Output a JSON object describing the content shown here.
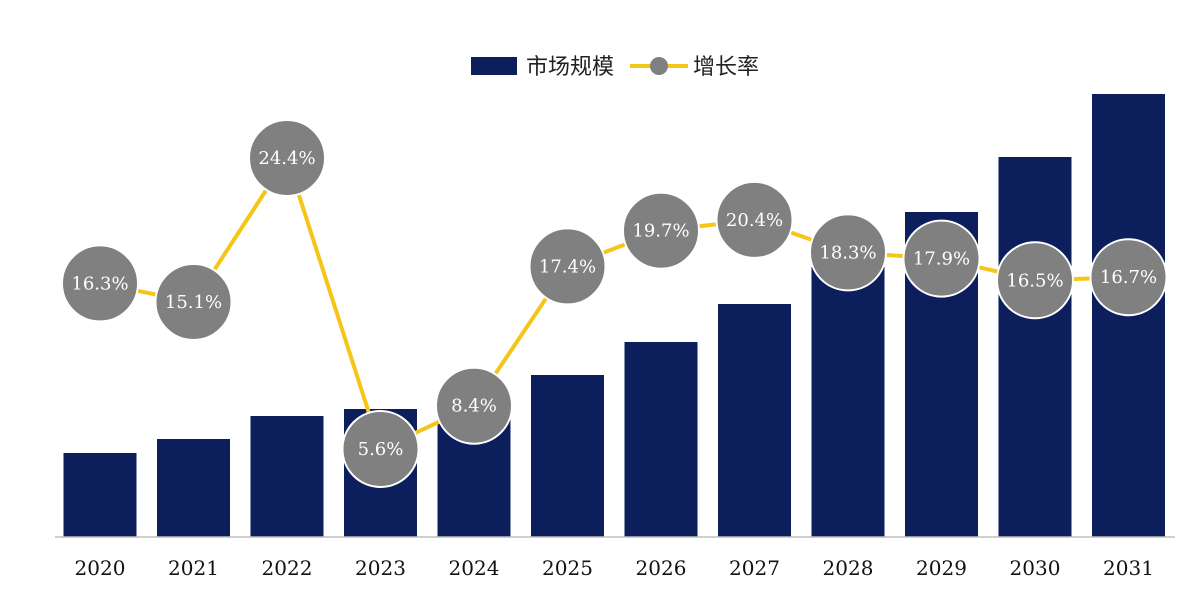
{
  "chart_data": {
    "type": "bar+line",
    "categories": [
      "2020",
      "2021",
      "2022",
      "2023",
      "2024",
      "2025",
      "2026",
      "2027",
      "2028",
      "2029",
      "2030",
      "2031"
    ],
    "series": [
      {
        "name": "市场规模",
        "type": "bar",
        "color": "#0c1f5c",
        "values": [
          84,
          98,
          121,
          128,
          136,
          162,
          195,
          233,
          270,
          325,
          380,
          443
        ]
      },
      {
        "name": "增长率",
        "type": "line",
        "line_color": "#f5c518",
        "marker_color": "#808080",
        "values": [
          16.3,
          15.1,
          24.4,
          5.6,
          8.4,
          17.4,
          19.7,
          20.4,
          18.3,
          17.9,
          16.5,
          16.7
        ],
        "labels": [
          "16.3%",
          "15.1%",
          "24.4%",
          "5.6%",
          "8.4%",
          "17.4%",
          "19.7%",
          "20.4%",
          "18.3%",
          "17.9%",
          "16.5%",
          "16.7%"
        ]
      }
    ],
    "legend_position": "top-center",
    "grid": false
  }
}
